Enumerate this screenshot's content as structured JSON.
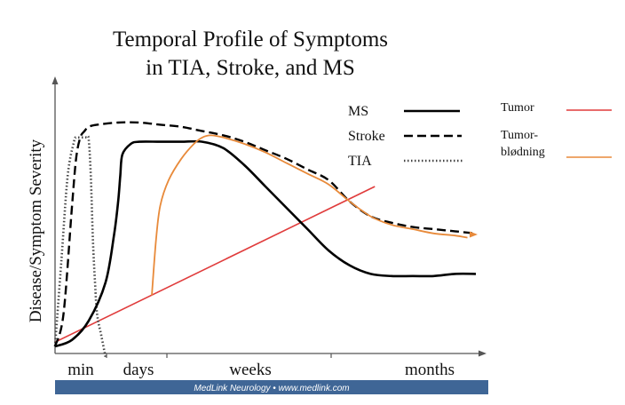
{
  "chart_data": {
    "type": "line",
    "title": [
      "Temporal Profile of Symptoms",
      "in TIA, Stroke, and MS"
    ],
    "ylabel": "Disease/Symptom  Severity",
    "xlabel": "",
    "x_ticks": [
      "min",
      "days",
      "weeks",
      "months"
    ],
    "x_range": [
      0,
      100
    ],
    "y_range": [
      0,
      100
    ],
    "grid": false,
    "legend_position": "top-right",
    "series": [
      {
        "name": "MS",
        "style": "solid",
        "color": "#000000",
        "x": [
          0,
          4,
          8,
          12,
          14,
          15,
          15.5,
          16,
          18,
          20,
          25,
          30,
          35,
          40,
          45,
          50,
          55,
          60,
          65,
          70,
          75,
          80,
          85,
          90,
          95,
          100
        ],
        "y": [
          0,
          3,
          12,
          30,
          52,
          68,
          80,
          90,
          95,
          96,
          96,
          96,
          96,
          93,
          85,
          75,
          65,
          55,
          45,
          38,
          34,
          33,
          33,
          33,
          34,
          34
        ]
      },
      {
        "name": "Stroke",
        "style": "dashed",
        "color": "#000000",
        "x": [
          0,
          2,
          4,
          5,
          6,
          7,
          8,
          10,
          15,
          20,
          25,
          30,
          35,
          40,
          45,
          50,
          55,
          60,
          65,
          70,
          75,
          80,
          85,
          90,
          95,
          100
        ],
        "y": [
          0,
          15,
          65,
          88,
          98,
          101,
          103,
          104,
          105,
          105,
          104,
          103,
          101,
          99,
          96,
          92,
          88,
          83,
          78,
          68,
          61,
          58,
          56,
          55,
          54,
          53
        ]
      },
      {
        "name": "TIA",
        "style": "dotted",
        "color": "#444444",
        "x": [
          0,
          1.5,
          3,
          4.5,
          5,
          5.5,
          6,
          7.5,
          8,
          8.5,
          9,
          9.5,
          10,
          11,
          12
        ],
        "y": [
          0,
          40,
          80,
          96,
          98,
          98,
          98,
          98,
          97,
          80,
          50,
          30,
          15,
          5,
          -5
        ]
      },
      {
        "name": "Tumor",
        "style": "solid",
        "color": "#e03c3c",
        "x": [
          0,
          76
        ],
        "y": [
          2,
          75
        ]
      },
      {
        "name": "Tumor-\nblødning",
        "style": "solid",
        "color": "#e88a3a",
        "x": [
          23,
          24,
          25,
          27,
          30,
          33,
          35,
          37,
          40,
          45,
          50,
          55,
          60,
          65,
          70,
          75,
          80,
          85,
          90,
          95,
          98
        ],
        "y": [
          24,
          50,
          66,
          78,
          88,
          95,
          98,
          99,
          98,
          95,
          91,
          86,
          81,
          76,
          68,
          61,
          57,
          55,
          53,
          52,
          51
        ]
      }
    ],
    "legend_left": [
      {
        "label": "MS",
        "style": "solid"
      },
      {
        "label": "Stroke",
        "style": "dashed"
      },
      {
        "label": "TIA",
        "style": "dotted"
      }
    ],
    "legend_right": [
      {
        "label": "Tumor",
        "color": "#e03c3c"
      },
      {
        "label": "Tumor-",
        "label2": "blødning",
        "color": "#e88a3a"
      }
    ],
    "footer": "MedLink Neurology  •  www.medlink.com",
    "colors": {
      "footer_bg": "#3f6696",
      "footer_text": "#ffffff",
      "axis": "#555555",
      "title": "#111111"
    }
  }
}
